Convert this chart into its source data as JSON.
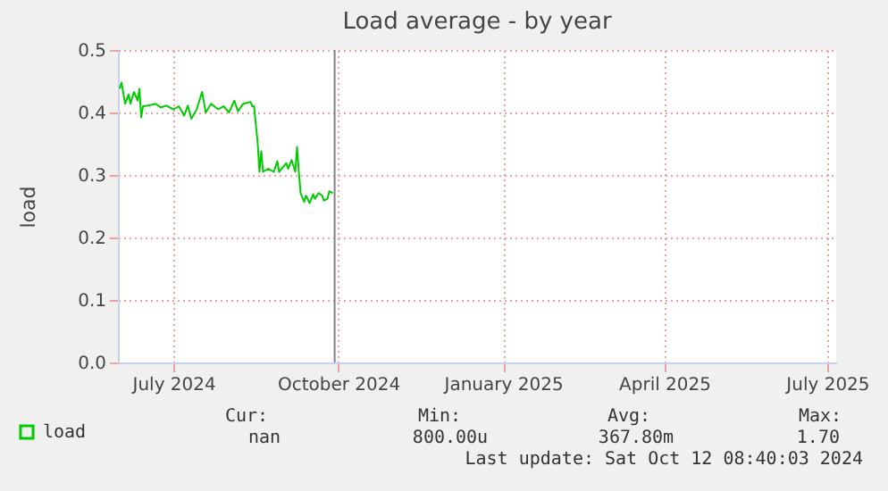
{
  "chart_data": {
    "type": "line",
    "title": "Load average - by year",
    "ylabel": "load",
    "x": [
      "2024-06-01",
      "2024-06-02",
      "2024-06-04",
      "2024-06-06",
      "2024-06-07",
      "2024-06-09",
      "2024-06-11",
      "2024-06-12",
      "2024-06-13",
      "2024-06-14",
      "2024-06-17",
      "2024-06-21",
      "2024-06-24",
      "2024-06-27",
      "2024-07-01",
      "2024-07-04",
      "2024-07-07",
      "2024-07-09",
      "2024-07-11",
      "2024-07-14",
      "2024-07-17",
      "2024-07-19",
      "2024-07-22",
      "2024-07-26",
      "2024-07-29",
      "2024-08-01",
      "2024-08-04",
      "2024-08-06",
      "2024-08-09",
      "2024-08-13",
      "2024-08-14",
      "2024-08-15",
      "2024-08-17",
      "2024-08-18",
      "2024-08-19",
      "2024-08-20",
      "2024-08-23",
      "2024-08-26",
      "2024-08-28",
      "2024-08-29",
      "2024-09-02",
      "2024-09-03",
      "2024-09-05",
      "2024-09-07",
      "2024-09-08",
      "2024-09-09",
      "2024-09-10",
      "2024-09-12",
      "2024-09-13",
      "2024-09-15",
      "2024-09-17",
      "2024-09-18",
      "2024-09-20",
      "2024-09-22",
      "2024-09-23",
      "2024-09-25",
      "2024-09-26",
      "2024-09-28"
    ],
    "series": [
      {
        "name": "load",
        "color": "#00cc00",
        "values": [
          0.438,
          0.448,
          0.414,
          0.429,
          0.414,
          0.433,
          0.419,
          0.438,
          0.392,
          0.41,
          0.411,
          0.414,
          0.408,
          0.411,
          0.405,
          0.41,
          0.395,
          0.411,
          0.39,
          0.405,
          0.433,
          0.4,
          0.414,
          0.405,
          0.41,
          0.4,
          0.419,
          0.402,
          0.414,
          0.417,
          0.41,
          0.41,
          0.352,
          0.305,
          0.338,
          0.305,
          0.31,
          0.305,
          0.322,
          0.305,
          0.319,
          0.31,
          0.324,
          0.305,
          0.345,
          0.305,
          0.271,
          0.257,
          0.267,
          0.255,
          0.269,
          0.262,
          0.271,
          0.267,
          0.259,
          0.262,
          0.274,
          0.271
        ]
      }
    ],
    "xlim": [
      "2024-05-31",
      "2025-07-06"
    ],
    "xticks": [
      {
        "value": "2024-07-01",
        "label": "July 2024"
      },
      {
        "value": "2024-10-01",
        "label": "October 2024"
      },
      {
        "value": "2025-01-01",
        "label": "January 2025"
      },
      {
        "value": "2025-04-01",
        "label": "April 2025"
      },
      {
        "value": "2025-07-01",
        "label": "July 2025"
      }
    ],
    "ylim": [
      0,
      0.5
    ],
    "yticks": [
      {
        "value": 0,
        "label": "0.0"
      },
      {
        "value": 0.1,
        "label": "0.1"
      },
      {
        "value": 0.2,
        "label": "0.2"
      },
      {
        "value": 0.3,
        "label": "0.3"
      },
      {
        "value": 0.4,
        "label": "0.4"
      },
      {
        "value": 0.5,
        "label": "0.5"
      }
    ],
    "ref_lines": [
      {
        "axis": "x",
        "value": "2024-09-29",
        "color": "#808080"
      }
    ],
    "grid": true,
    "legend": "bottom left",
    "line_style": "solid",
    "marker": "none",
    "annotations": [
      "Cur:",
      "Min:",
      "Avg:",
      "Max:",
      "nan",
      "800.00u",
      "367.80m",
      "1.70",
      "Last update: Sat Oct 12 08:40:03 2024"
    ]
  }
}
